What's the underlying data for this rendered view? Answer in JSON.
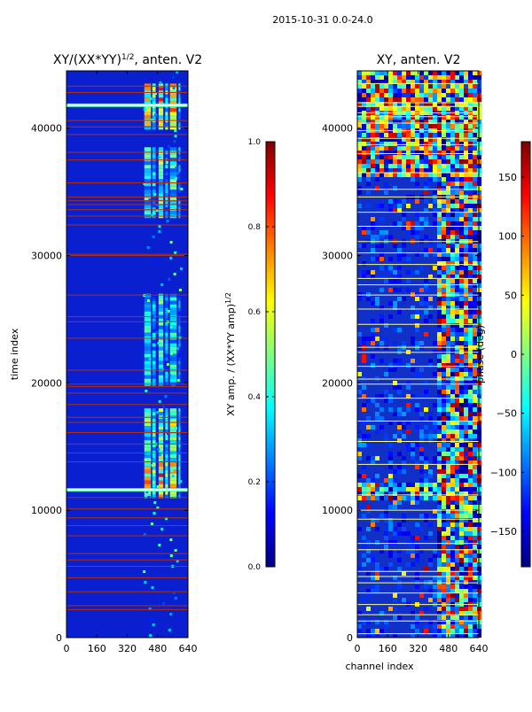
{
  "figure": {
    "suptitle": "2015-10-31 0.0-24.0"
  },
  "colors": {
    "jet": [
      "#00007f",
      "#0000ff",
      "#007fff",
      "#00ffff",
      "#7fff7f",
      "#ffff00",
      "#ff7f00",
      "#ff0000",
      "#7f0000"
    ],
    "amp_background": "#0a1fd0",
    "phase_background": "#1030c8",
    "flag_line_left": "#b03010",
    "flag_line_right": "#ffff80"
  },
  "chart_data": [
    {
      "type": "heatmap",
      "title_prefix": "XY/(XX*YY)",
      "title_sup": "1/2",
      "title_suffix": ", anten. V2",
      "xlabel": "",
      "ylabel": "time index",
      "xlim": [
        0,
        640
      ],
      "ylim": [
        0,
        44500
      ],
      "xticks": [
        0,
        160,
        320,
        480,
        640
      ],
      "yticks": [
        0,
        10000,
        20000,
        30000,
        40000
      ],
      "bright_band_channels": [
        [
          410,
          445,
          0.72
        ],
        [
          452,
          470,
          0.6
        ],
        [
          485,
          510,
          0.82
        ],
        [
          520,
          535,
          0.55
        ],
        [
          545,
          580,
          0.78
        ],
        [
          590,
          600,
          0.5
        ]
      ],
      "bright_time_ranges": [
        [
          11000,
          14000,
          0.95
        ],
        [
          14000,
          18000,
          0.7
        ],
        [
          20000,
          27000,
          0.55
        ],
        [
          33000,
          38500,
          0.6
        ],
        [
          40000,
          43500,
          0.9
        ]
      ],
      "highlight_rows": [
        11600,
        41800
      ],
      "flagged_rows": [
        2200,
        2500,
        3600,
        4700,
        5600,
        6100,
        6600,
        8000,
        8800,
        9400,
        10100,
        11000,
        13800,
        14500,
        15200,
        16100,
        16900,
        17300,
        18300,
        19200,
        19700,
        19900,
        21000,
        23500,
        24800,
        25200,
        26900,
        30000,
        30100,
        32400,
        33100,
        33600,
        34000,
        34300,
        34600,
        35700,
        37500,
        38100,
        39500,
        40100,
        40600,
        42800,
        43300
      ],
      "colorbar": {
        "min": 0.0,
        "max": 1.0,
        "ticks": [
          "0.0",
          "0.2",
          "0.4",
          "0.6",
          "0.8",
          "1.0"
        ],
        "label_prefix": "XY amp. / (XX*YY amp)",
        "label_sup": "1/2"
      }
    },
    {
      "type": "heatmap",
      "title": "XY, anten. V2",
      "xlabel": "channel index",
      "ylabel": "",
      "xlim": [
        0,
        640
      ],
      "ylim": [
        0,
        44500
      ],
      "xticks": [
        0,
        160,
        320,
        480,
        640
      ],
      "yticks": [
        0,
        10000,
        20000,
        30000,
        40000
      ],
      "noisy_time_ranges": [
        [
          11000,
          12200
        ],
        [
          36500,
          44500
        ]
      ],
      "active_channels": [
        400,
        640
      ],
      "flagged_rows": [
        300,
        1300,
        1800,
        2600,
        3500,
        4300,
        4800,
        5200,
        6900,
        7400,
        9300,
        10000,
        11200,
        13600,
        15400,
        17000,
        18800,
        19900,
        20300,
        21300,
        22400,
        22800,
        24600,
        25800,
        26900,
        27700,
        28200,
        29300,
        30200,
        31100,
        32300,
        33400,
        34600,
        35200,
        36500,
        38000,
        38700,
        39200,
        39800,
        40400,
        40900,
        41200,
        41700,
        42000,
        43500
      ],
      "colorbar": {
        "min": -180,
        "max": 180,
        "ticks": [
          "−150",
          "−100",
          "−50",
          "0",
          "50",
          "100",
          "150"
        ],
        "tick_values": [
          -150,
          -100,
          -50,
          0,
          50,
          100,
          150
        ],
        "label": "phase (deg)"
      }
    }
  ]
}
